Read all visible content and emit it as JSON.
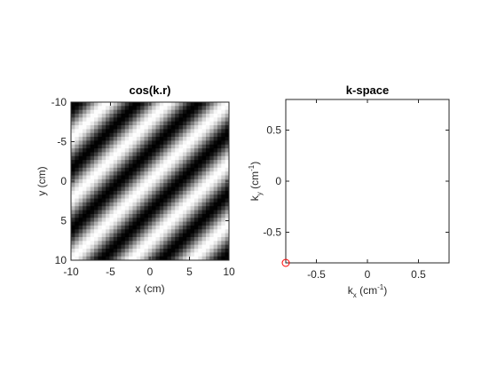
{
  "chart_data": [
    {
      "type": "heatmap",
      "title": "cos(k.r)",
      "xlabel": "x (cm)",
      "ylabel": "y (cm)",
      "xlim": [
        -10,
        10
      ],
      "ylim": [
        -10,
        10
      ],
      "y_direction": "reversed",
      "xticks": [
        -10,
        -5,
        0,
        5,
        10
      ],
      "yticks": [
        -10,
        -5,
        0,
        5,
        10
      ],
      "xticklabels": [
        "-10",
        "-5",
        "0",
        "5",
        "10"
      ],
      "yticklabels": [
        "-10",
        "-5",
        "0",
        "5",
        "10"
      ],
      "grid_points": 41,
      "function": "cos(kx*x + ky*y)",
      "kx": -0.8,
      "ky": -0.8,
      "colormap": "gray"
    },
    {
      "type": "scatter",
      "title": "k-space",
      "xlabel_base": "k",
      "xlabel_sub": "x",
      "xlabel_unit": " (cm",
      "xlabel_sup": "-1",
      "xlabel_close": ")",
      "ylabel_base": "k",
      "ylabel_sub": "y",
      "ylabel_unit": " (cm",
      "ylabel_sup": "-1",
      "ylabel_close": ")",
      "xlim": [
        -0.8,
        0.8
      ],
      "ylim": [
        -0.8,
        0.8
      ],
      "xticks": [
        -0.5,
        0,
        0.5
      ],
      "yticks": [
        -0.5,
        0,
        0.5
      ],
      "xticklabels": [
        "-0.5",
        "0",
        "0.5"
      ],
      "yticklabels": [
        "-0.5",
        "0",
        "0.5"
      ],
      "points": [
        {
          "x": -0.8,
          "y": -0.8
        }
      ],
      "marker": "circle",
      "marker_color": "#ff0000"
    }
  ]
}
